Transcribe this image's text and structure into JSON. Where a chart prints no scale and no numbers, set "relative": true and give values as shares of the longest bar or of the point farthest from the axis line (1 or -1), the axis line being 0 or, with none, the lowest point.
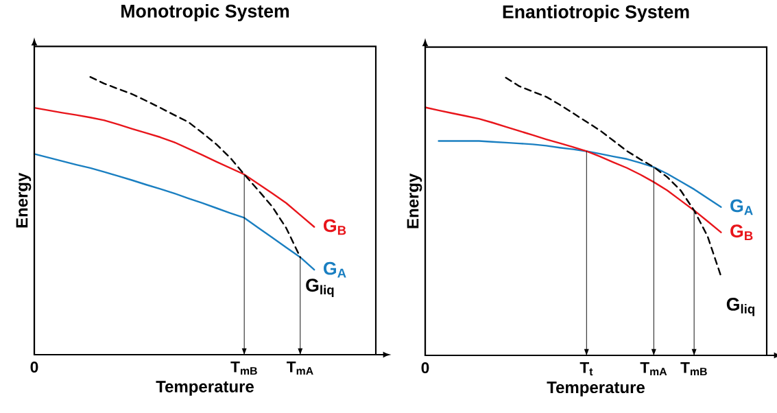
{
  "chart_data": [
    {
      "type": "line",
      "title": "Monotropic System",
      "xlabel": "Temperature",
      "ylabel": "Energy",
      "relative": true,
      "categories": [
        "0",
        null,
        null,
        null,
        null,
        null,
        null,
        null,
        null,
        null,
        null,
        null,
        null,
        null,
        null,
        "T$_{mB}$",
        null,
        null,
        null,
        "T$_{mA}$",
        null,
        null,
        null,
        null,
        null
      ],
      "series": [
        {
          "name": "G$_{B}$",
          "color": "#e8151b",
          "values": [
            0.889,
            0.88,
            0.871,
            0.863,
            0.854,
            0.844,
            0.829,
            0.813,
            0.798,
            0.783,
            0.765,
            0.742,
            0.719,
            0.695,
            0.672,
            0.649,
            0.615,
            0.581,
            0.546,
            0.503,
            0.46,
            null,
            null,
            null,
            null
          ]
        },
        {
          "name": "G$_{A}$",
          "color": "#1a7fc1",
          "values": [
            0.723,
            0.71,
            0.697,
            0.684,
            0.672,
            0.658,
            0.643,
            0.628,
            0.612,
            0.597,
            0.581,
            0.563,
            0.546,
            0.528,
            0.51,
            0.493,
            0.457,
            0.422,
            0.386,
            0.351,
            0.306,
            null,
            null,
            null,
            null
          ]
        },
        {
          "name": "G$_{liq}$",
          "color": "#000000",
          "line_style": "dashed",
          "values": [
            null,
            null,
            null,
            null,
            1,
            0.976,
            0.957,
            0.938,
            0.914,
            0.889,
            0.863,
            0.838,
            0.799,
            0.758,
            0.709,
            0.649,
            0.592,
            0.533,
            0.456,
            0.351,
            null,
            null,
            null,
            null,
            null
          ]
        },
        {
          "type": "bar",
          "color": "#000000",
          "values": [
            null,
            null,
            null,
            null,
            null,
            null,
            null,
            null,
            null,
            null,
            null,
            null,
            null,
            null,
            null,
            0.649,
            null,
            null,
            null,
            0.351,
            null,
            null,
            null,
            null,
            null
          ]
        }
      ]
    },
    {
      "type": "line",
      "title": "Enantiotropic System",
      "xlabel": "Temperature",
      "ylabel": "Energy",
      "relative": true,
      "categories": [
        "0",
        null,
        null,
        null,
        null,
        null,
        null,
        null,
        null,
        null,
        null,
        null,
        "T$_{t}$",
        null,
        null,
        null,
        null,
        "T$_{mA}$",
        null,
        null,
        "T$_{mB}$",
        null,
        null,
        null,
        null,
        null
      ],
      "series": [
        {
          "name": "G$_{A}$",
          "color": "#1a7fc1",
          "values": [
            null,
            0.772,
            0.772,
            0.772,
            0.772,
            0.769,
            0.766,
            0.763,
            0.76,
            0.755,
            0.748,
            0.742,
            0.735,
            0.726,
            0.716,
            0.707,
            0.693,
            0.678,
            0.654,
            0.626,
            0.598,
            0.566,
            0.534,
            null,
            null,
            null
          ]
        },
        {
          "name": "G$_{B}$",
          "color": "#e8151b",
          "values": [
            0.893,
            0.882,
            0.872,
            0.862,
            0.852,
            0.838,
            0.823,
            0.808,
            0.793,
            0.778,
            0.764,
            0.75,
            0.735,
            0.716,
            0.695,
            0.675,
            0.651,
            0.624,
            0.594,
            0.558,
            0.522,
            0.483,
            0.443,
            null,
            null,
            null
          ]
        },
        {
          "name": "G$_{liq}$",
          "color": "#000000",
          "line_style": "dashed",
          "values": [
            null,
            null,
            null,
            null,
            null,
            null,
            1,
            0.969,
            0.95,
            0.931,
            0.903,
            0.872,
            0.841,
            0.81,
            0.773,
            0.736,
            0.706,
            0.678,
            0.642,
            0.594,
            0.522,
            0.429,
            0.285,
            null,
            null,
            null
          ]
        },
        {
          "type": "bar",
          "color": "#000000",
          "values": [
            null,
            null,
            null,
            null,
            null,
            null,
            null,
            null,
            null,
            null,
            null,
            null,
            0.735,
            null,
            null,
            null,
            null,
            0.678,
            null,
            null,
            0.522,
            null,
            null,
            null,
            null,
            null
          ]
        }
      ]
    }
  ]
}
